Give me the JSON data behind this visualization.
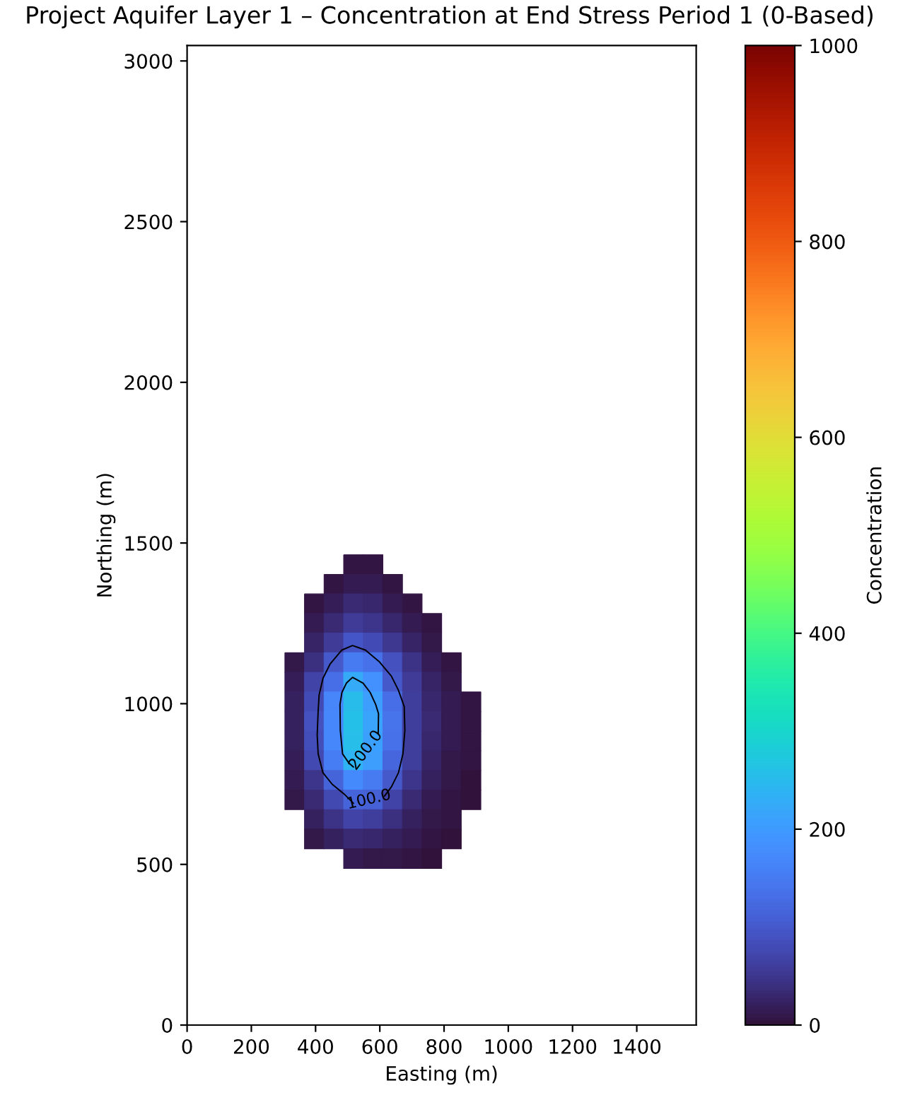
{
  "chart_data": {
    "type": "heatmap",
    "title": "Project Aquifer Layer 1 – Concentration at End Stress Period 1 (0-Based)",
    "xlabel": "Easting (m)",
    "ylabel": "Northing (m)",
    "clabel": "Concentration",
    "xlim": [
      0,
      1585
    ],
    "ylim": [
      0,
      3048
    ],
    "xticks": [
      0,
      200,
      400,
      600,
      800,
      1000,
      1200,
      1400
    ],
    "yticks": [
      0,
      500,
      1000,
      1500,
      2000,
      2500,
      3000
    ],
    "clim": [
      0,
      1000
    ],
    "cticks": [
      0,
      200,
      400,
      600,
      800,
      1000
    ],
    "x": [
      335,
      396,
      457,
      518,
      579,
      640,
      701,
      762,
      823,
      884
    ],
    "y": [
      1433,
      1372,
      1311,
      1250,
      1189,
      1128,
      1067,
      1006,
      945,
      884,
      823,
      762,
      701,
      640,
      579,
      518
    ],
    "cells": [
      [
        null,
        null,
        null,
        6,
        5,
        null,
        null,
        null,
        null,
        null
      ],
      [
        null,
        null,
        6,
        14,
        12,
        5,
        null,
        null,
        null,
        null
      ],
      [
        null,
        5,
        18,
        32,
        28,
        15,
        6,
        null,
        null,
        null
      ],
      [
        null,
        14,
        35,
        58,
        50,
        30,
        15,
        5,
        null,
        null
      ],
      [
        null,
        25,
        58,
        94,
        80,
        52,
        27,
        10,
        null,
        null
      ],
      [
        10,
        42,
        100,
        150,
        135,
        88,
        45,
        18,
        6,
        null
      ],
      [
        16,
        68,
        130,
        225,
        185,
        100,
        55,
        25,
        9,
        null
      ],
      [
        20,
        82,
        165,
        250,
        205,
        130,
        62,
        30,
        12,
        4
      ],
      [
        22,
        86,
        170,
        258,
        212,
        140,
        62,
        32,
        13,
        5
      ],
      [
        22,
        84,
        168,
        255,
        210,
        135,
        62,
        30,
        12,
        5
      ],
      [
        19,
        75,
        155,
        240,
        205,
        120,
        60,
        27,
        10,
        4
      ],
      [
        14,
        50,
        115,
        175,
        150,
        100,
        48,
        22,
        8,
        3
      ],
      [
        8,
        34,
        75,
        115,
        110,
        68,
        35,
        15,
        6,
        2
      ],
      [
        null,
        20,
        45,
        68,
        62,
        42,
        22,
        10,
        4,
        null
      ],
      [
        null,
        10,
        22,
        35,
        30,
        20,
        12,
        6,
        2,
        null
      ],
      [
        null,
        null,
        null,
        12,
        10,
        8,
        5,
        3,
        null,
        null
      ]
    ],
    "series": [
      {
        "type": "line",
        "name": "100.0",
        "color": "#000000",
        "x": [
          614,
          636,
          658,
          672,
          678,
          676,
          658,
          636,
          599,
          555,
          515,
          482,
          445,
          423,
          411,
          408,
          405,
          408,
          423,
          452,
          489,
          518
        ],
        "values": [
          712,
          741,
          785,
          844,
          917,
          991,
          1042,
          1086,
          1130,
          1167,
          1181,
          1167,
          1123,
          1079,
          1027,
          976,
          903,
          844,
          785,
          749,
          719,
          690
        ]
      },
      {
        "type": "line",
        "name": "200.0",
        "color": "#000000",
        "x": [
          595,
          596,
          587,
          570,
          548,
          515,
          496,
          482,
          476,
          477,
          484,
          504,
          518
        ],
        "values": [
          906,
          969,
          998,
          1035,
          1064,
          1082,
          1064,
          1035,
          998,
          917,
          844,
          815,
          803
        ]
      }
    ]
  }
}
